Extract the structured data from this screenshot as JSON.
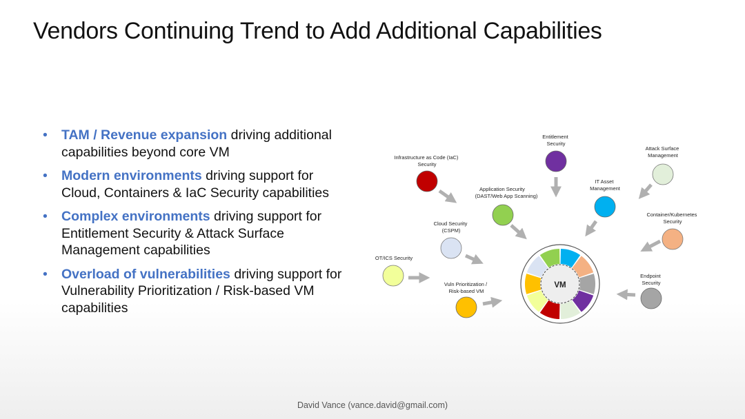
{
  "slide": {
    "title": "Vendors Continuing Trend to Add Additional Capabilities",
    "footer": "David Vance (vance.david@gmail.com)"
  },
  "bullets": [
    {
      "highlight": "TAM / Revenue expansion",
      "text": " driving additional capabilities beyond core VM"
    },
    {
      "highlight": "Modern environments",
      "text": " driving support for Cloud, Containers & IaC Security capabilities"
    },
    {
      "highlight": "Complex environments",
      "text": " driving support for Entitlement Security & Attack Surface Management capabilities"
    },
    {
      "highlight": "Overload of vulnerabilities",
      "text": " driving support for Vulnerability Prioritization / Risk-based VM capabilities"
    }
  ],
  "colors": {
    "accent": "#4472c4",
    "iac": "#c00000",
    "entitlement": "#7030a0",
    "attack_surface": "#e2efda",
    "it_asset": "#00b0f0",
    "app_security": "#92d050",
    "cloud": "#dae3f3",
    "container": "#f4b183",
    "ot_ics": "#f2ff9a",
    "endpoint": "#a5a5a5",
    "vuln_prioritization": "#ffc000"
  },
  "diagram": {
    "center_label": "VM",
    "nodes": {
      "entitlement": [
        "Entitlement",
        "Security"
      ],
      "attack_surface": [
        "Attack Surface",
        "Management"
      ],
      "iac": [
        "Infrastructure as Code (IaC)",
        "Security"
      ],
      "it_asset": [
        "IT Asset",
        "Management"
      ],
      "app_security": [
        "Application Security",
        "(DAST/Web App Scanning)"
      ],
      "container": [
        "Container/Kubernetes",
        "Security"
      ],
      "cloud": [
        "Cloud Security",
        "(CSPM)"
      ],
      "ot_ics": [
        "OT/ICS Security"
      ],
      "endpoint": [
        "Endpoint",
        "Security"
      ],
      "vuln_prioritization": [
        "Vuln Prioritization /",
        "Risk-based VM"
      ]
    }
  }
}
